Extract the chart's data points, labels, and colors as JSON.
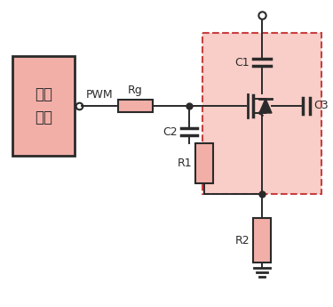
{
  "bg_color": "#ffffff",
  "comp_fill": "#F2AFA8",
  "dashed_fill": "#F9CEC8",
  "lc": "#2a2a2a",
  "chip_label1": "电源",
  "chip_label2": "芯片",
  "pwm_label": "PWM",
  "rg_label": "Rg",
  "r1_label": "R1",
  "r2_label": "R2",
  "c1_label": "C1",
  "c2_label": "C2",
  "c3_label": "C3",
  "figw": 3.75,
  "figh": 3.45,
  "dpi": 100
}
